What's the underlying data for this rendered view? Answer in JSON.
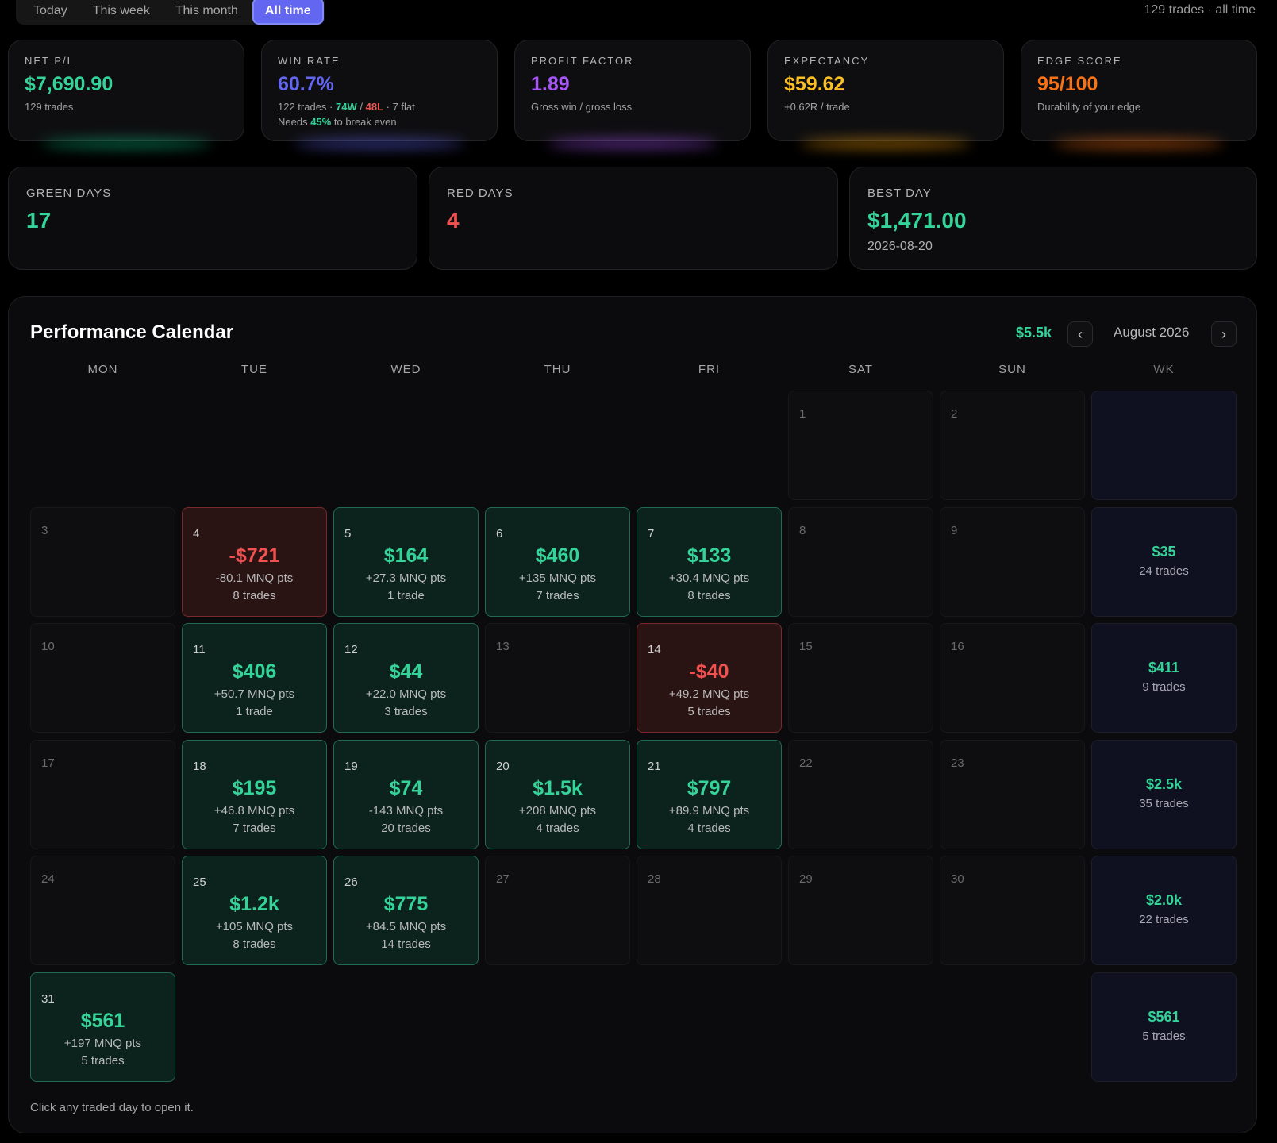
{
  "filters": {
    "tabs": [
      "Today",
      "This week",
      "This month",
      "All time"
    ],
    "active": "All time",
    "summary": "129 trades · all time"
  },
  "kpis": {
    "net_pl": {
      "label": "NET P/L",
      "value": "$7,690.90",
      "sub": "129 trades",
      "color": "#34d399"
    },
    "win_rate": {
      "label": "WIN RATE",
      "value": "60.7%",
      "sub_prefix": "122 trades ·",
      "wins": "74W",
      "slash": "/",
      "losses": "48L",
      "sub_suffix": "· 7 flat",
      "needs_prefix": "Needs",
      "needs_pct": "45%",
      "needs_suffix": "to break even",
      "color": "#6366f1"
    },
    "profit_factor": {
      "label": "PROFIT FACTOR",
      "value": "1.89",
      "sub": "Gross win / gross loss",
      "color": "#a855f7"
    },
    "expectancy": {
      "label": "EXPECTANCY",
      "value": "$59.62",
      "sub": "+0.62R / trade",
      "color": "#fbbf24"
    },
    "edge_score": {
      "label": "EDGE SCORE",
      "value": "95/100",
      "sub": "Durability of your edge",
      "color": "#f97316"
    }
  },
  "day_stats": {
    "green": {
      "label": "GREEN DAYS",
      "value": "17"
    },
    "red": {
      "label": "RED DAYS",
      "value": "4"
    },
    "best": {
      "label": "BEST DAY",
      "value": "$1,471.00",
      "date": "2026-08-20"
    }
  },
  "calendar": {
    "title": "Performance Calendar",
    "month_total": "$5.5k",
    "prev_icon": "‹",
    "next_icon": "›",
    "month": "August 2026",
    "weekdays": [
      "MON",
      "TUE",
      "WED",
      "THU",
      "FRI",
      "SAT",
      "SUN",
      "WK"
    ],
    "hint": "Click any traded day to open it.",
    "days": [
      {
        "day": "1",
        "row": 0,
        "col": 5
      },
      {
        "day": "2",
        "row": 0,
        "col": 6
      },
      {
        "day": "3",
        "row": 1,
        "col": 0
      },
      {
        "day": "4",
        "row": 1,
        "col": 1,
        "status": "red",
        "pl": "-$721",
        "pts": "-80.1 MNQ pts",
        "trades": "8 trades"
      },
      {
        "day": "5",
        "row": 1,
        "col": 2,
        "status": "green",
        "pl": "$164",
        "pts": "+27.3 MNQ pts",
        "trades": "1 trade"
      },
      {
        "day": "6",
        "row": 1,
        "col": 3,
        "status": "green",
        "pl": "$460",
        "pts": "+135 MNQ pts",
        "trades": "7 trades"
      },
      {
        "day": "7",
        "row": 1,
        "col": 4,
        "status": "green",
        "pl": "$133",
        "pts": "+30.4 MNQ pts",
        "trades": "8 trades"
      },
      {
        "day": "8",
        "row": 1,
        "col": 5
      },
      {
        "day": "9",
        "row": 1,
        "col": 6
      },
      {
        "day": "10",
        "row": 2,
        "col": 0
      },
      {
        "day": "11",
        "row": 2,
        "col": 1,
        "status": "green",
        "pl": "$406",
        "pts": "+50.7 MNQ pts",
        "trades": "1 trade"
      },
      {
        "day": "12",
        "row": 2,
        "col": 2,
        "status": "green",
        "pl": "$44",
        "pts": "+22.0 MNQ pts",
        "trades": "3 trades"
      },
      {
        "day": "13",
        "row": 2,
        "col": 3
      },
      {
        "day": "14",
        "row": 2,
        "col": 4,
        "status": "red",
        "pl": "-$40",
        "pts": "+49.2 MNQ pts",
        "trades": "5 trades"
      },
      {
        "day": "15",
        "row": 2,
        "col": 5
      },
      {
        "day": "16",
        "row": 2,
        "col": 6
      },
      {
        "day": "17",
        "row": 3,
        "col": 0
      },
      {
        "day": "18",
        "row": 3,
        "col": 1,
        "status": "green",
        "pl": "$195",
        "pts": "+46.8 MNQ pts",
        "trades": "7 trades"
      },
      {
        "day": "19",
        "row": 3,
        "col": 2,
        "status": "green",
        "pl": "$74",
        "pts": "-143 MNQ pts",
        "trades": "20 trades"
      },
      {
        "day": "20",
        "row": 3,
        "col": 3,
        "status": "green",
        "pl": "$1.5k",
        "pts": "+208 MNQ pts",
        "trades": "4 trades"
      },
      {
        "day": "21",
        "row": 3,
        "col": 4,
        "status": "green",
        "pl": "$797",
        "pts": "+89.9 MNQ pts",
        "trades": "4 trades"
      },
      {
        "day": "22",
        "row": 3,
        "col": 5
      },
      {
        "day": "23",
        "row": 3,
        "col": 6
      },
      {
        "day": "24",
        "row": 4,
        "col": 0
      },
      {
        "day": "25",
        "row": 4,
        "col": 1,
        "status": "green",
        "pl": "$1.2k",
        "pts": "+105 MNQ pts",
        "trades": "8 trades"
      },
      {
        "day": "26",
        "row": 4,
        "col": 2,
        "status": "green",
        "pl": "$775",
        "pts": "+84.5 MNQ pts",
        "trades": "14 trades"
      },
      {
        "day": "27",
        "row": 4,
        "col": 3
      },
      {
        "day": "28",
        "row": 4,
        "col": 4
      },
      {
        "day": "29",
        "row": 4,
        "col": 5
      },
      {
        "day": "30",
        "row": 4,
        "col": 6
      },
      {
        "day": "31",
        "row": 5,
        "col": 0,
        "status": "green",
        "pl": "$561",
        "pts": "+197 MNQ pts",
        "trades": "5 trades"
      }
    ],
    "weeks": [
      {
        "row": 0
      },
      {
        "row": 1,
        "pl": "$35",
        "trades": "24 trades"
      },
      {
        "row": 2,
        "pl": "$411",
        "trades": "9 trades"
      },
      {
        "row": 3,
        "pl": "$2.5k",
        "trades": "35 trades"
      },
      {
        "row": 4,
        "pl": "$2.0k",
        "trades": "22 trades"
      },
      {
        "row": 5,
        "pl": "$561",
        "trades": "5 trades"
      }
    ]
  }
}
